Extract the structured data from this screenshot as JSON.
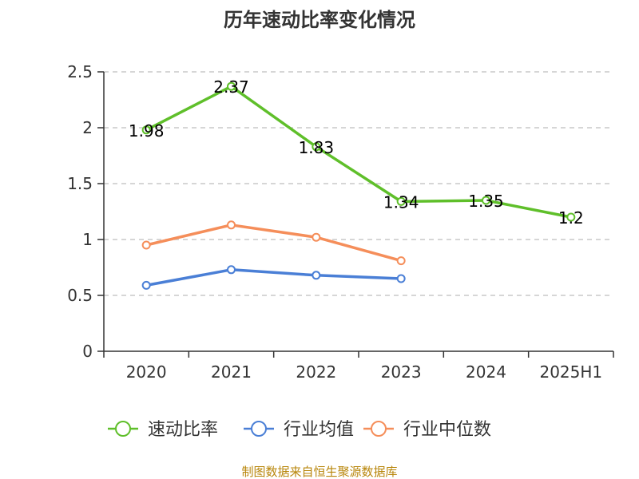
{
  "chart_data": {
    "type": "line",
    "title": "历年速动比率变化情况",
    "categories": [
      "2020",
      "2021",
      "2022",
      "2023",
      "2024",
      "2025H1"
    ],
    "ylim": [
      0,
      2.5
    ],
    "yticks": [
      "0",
      "0.5",
      "1",
      "1.5",
      "2",
      "2.5"
    ],
    "grid": true,
    "legend_position": "bottom",
    "series": [
      {
        "name": "速动比率",
        "color": "#5fbf2a",
        "values": [
          1.98,
          2.37,
          1.83,
          1.34,
          1.35,
          1.2
        ],
        "labels": [
          "1.98",
          "2.37",
          "1.83",
          "1.34",
          "1.35",
          "1.2"
        ]
      },
      {
        "name": "行业均值",
        "color": "#4a7fd6",
        "values": [
          0.59,
          0.73,
          0.68,
          0.65,
          null,
          null
        ]
      },
      {
        "name": "行业中位数",
        "color": "#f58e5a",
        "values": [
          0.95,
          1.13,
          1.02,
          0.81,
          null,
          null
        ]
      }
    ]
  },
  "source": "制图数据来自恒生聚源数据库"
}
